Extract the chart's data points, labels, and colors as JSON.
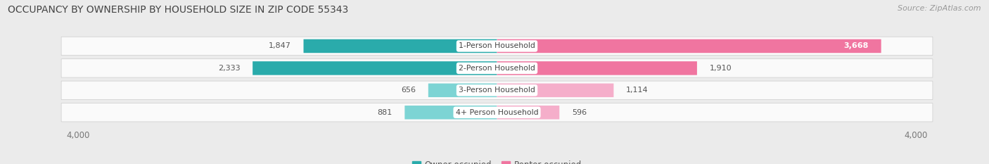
{
  "title": "OCCUPANCY BY OWNERSHIP BY HOUSEHOLD SIZE IN ZIP CODE 55343",
  "source": "Source: ZipAtlas.com",
  "categories": [
    "1-Person Household",
    "2-Person Household",
    "3-Person Household",
    "4+ Person Household"
  ],
  "owner_values": [
    1847,
    2333,
    656,
    881
  ],
  "renter_values": [
    3668,
    1910,
    1114,
    596
  ],
  "owner_color_dark": "#2AABAB",
  "owner_color_light": "#7DD4D4",
  "renter_color_dark": "#F075A0",
  "renter_color_light": "#F5AECA",
  "background_color": "#EBEBEB",
  "bar_background": "#FAFAFA",
  "axis_max": 4000,
  "bar_height": 0.62,
  "title_fontsize": 10,
  "tick_fontsize": 8.5,
  "legend_fontsize": 8.5,
  "source_fontsize": 8
}
